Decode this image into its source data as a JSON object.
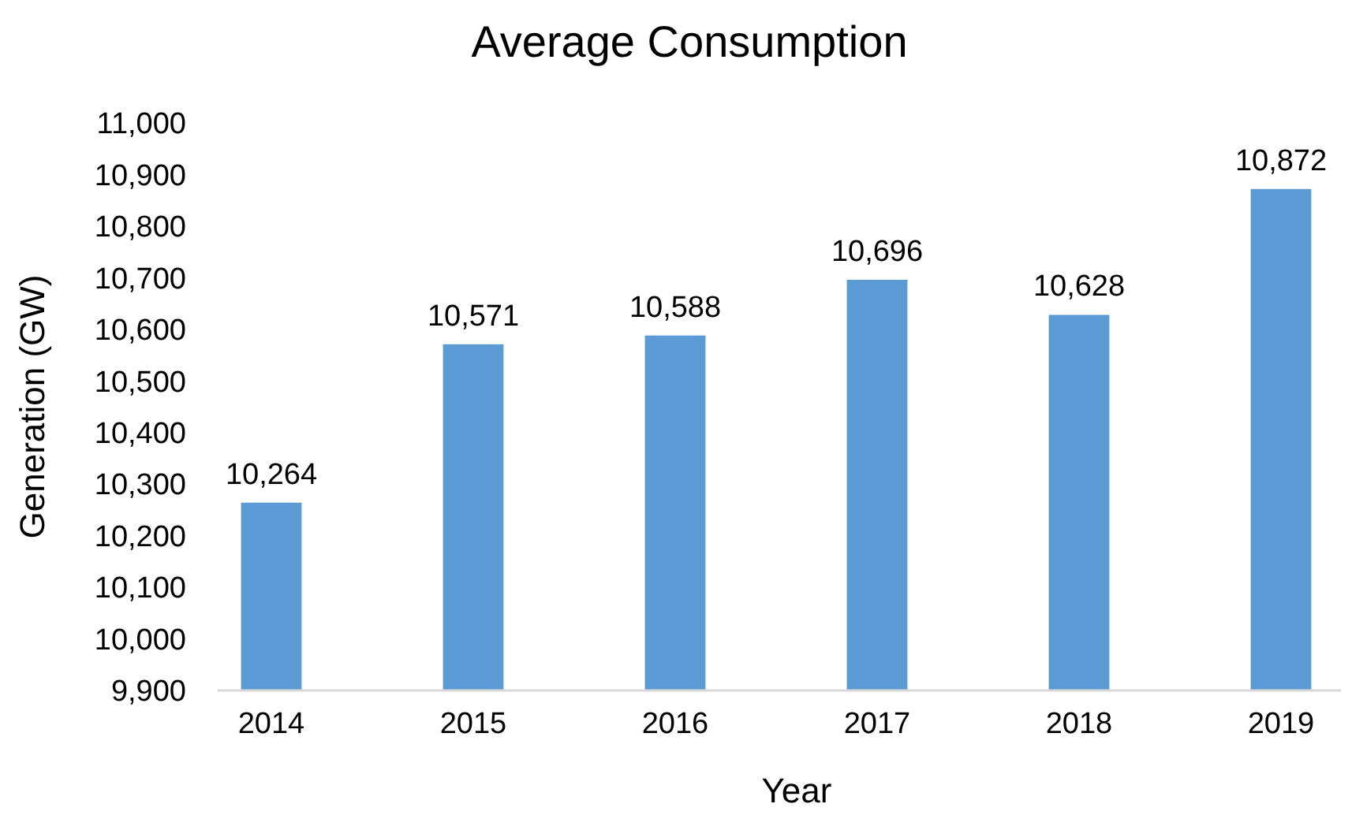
{
  "chart_data": {
    "type": "bar",
    "title": "Average Consumption",
    "xlabel": "Year",
    "ylabel": "Generation (GW)",
    "categories": [
      "2014",
      "2015",
      "2016",
      "2017",
      "2018",
      "2019"
    ],
    "values": [
      10264,
      10571,
      10588,
      10696,
      10628,
      10872
    ],
    "color": "#5b9bd5",
    "ylim": [
      9900,
      11000
    ],
    "yticks": [
      {
        "value": 9900,
        "label": "9,900"
      },
      {
        "value": 10000,
        "label": "10,000"
      },
      {
        "value": 10100,
        "label": "10,100"
      },
      {
        "value": 10200,
        "label": "10,200"
      },
      {
        "value": 10300,
        "label": "10,300"
      },
      {
        "value": 10400,
        "label": "10,400"
      },
      {
        "value": 10500,
        "label": "10,500"
      },
      {
        "value": 10600,
        "label": "10,600"
      },
      {
        "value": 10700,
        "label": "10,700"
      },
      {
        "value": 10800,
        "label": "10,800"
      },
      {
        "value": 10900,
        "label": "10,900"
      },
      {
        "value": 11000,
        "label": "11,000"
      }
    ],
    "value_labels": [
      "10,264",
      "10,571",
      "10,588",
      "10,696",
      "10,628",
      "10,872"
    ],
    "grid": false
  }
}
